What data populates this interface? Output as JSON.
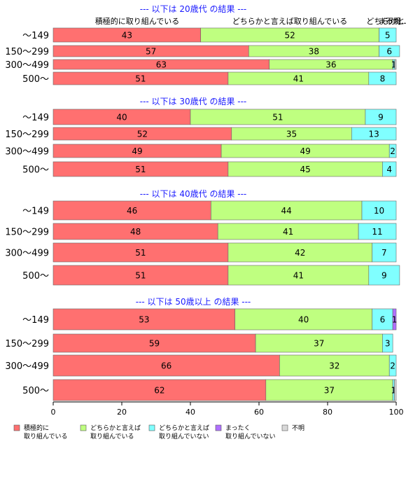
{
  "chart_data": {
    "type": "bar",
    "orientation": "horizontal",
    "stacked": true,
    "xlim": [
      0,
      100
    ],
    "x_ticks": [
      0,
      20,
      40,
      60,
      80,
      100
    ],
    "grid": false,
    "legend_position": "bottom",
    "top_labels": [
      "積極的に取り組んでいる",
      "どちらかと言えば取り組んでいる",
      "どちらかと...",
      "まった...",
      "不明..."
    ],
    "series": [
      {
        "name": "積極的に\n取り組んでいる",
        "color": "#FF7070"
      },
      {
        "name": "どちらかと言えば\n取り組んでいる",
        "color": "#BFFF80"
      },
      {
        "name": "どちらかと言えば\n取り組んでいない",
        "color": "#80FFFF"
      },
      {
        "name": "まったく\n取り組んでいない",
        "color": "#B070FF"
      },
      {
        "name": "不明",
        "color": "#D9D9D9"
      }
    ],
    "panels": [
      {
        "title": "--- 以下は 20歳代 の結果 ---",
        "rows": [
          {
            "category": "～149",
            "values": [
              43,
              52,
              5,
              0,
              0
            ],
            "labels": [
              "43",
              "52",
              "5",
              "",
              ""
            ]
          },
          {
            "category": "150～299",
            "values": [
              57,
              38,
              6,
              0,
              0
            ],
            "labels": [
              "57",
              "38",
              "6",
              "",
              ""
            ]
          },
          {
            "category": "300～499",
            "values": [
              63,
              36,
              0.6,
              0,
              0.4
            ],
            "labels": [
              "63",
              "36",
              "1",
              "",
              ""
            ]
          },
          {
            "category": "500～",
            "values": [
              51,
              41,
              8,
              0,
              0
            ],
            "labels": [
              "51",
              "41",
              "8",
              "",
              ""
            ]
          }
        ]
      },
      {
        "title": "--- 以下は 30歳代 の結果 ---",
        "rows": [
          {
            "category": "～149",
            "values": [
              40,
              51,
              9,
              0,
              0
            ],
            "labels": [
              "40",
              "51",
              "9",
              "",
              ""
            ]
          },
          {
            "category": "150～299",
            "values": [
              52,
              35,
              13,
              0,
              0
            ],
            "labels": [
              "52",
              "35",
              "13",
              "",
              ""
            ]
          },
          {
            "category": "300～499",
            "values": [
              49,
              49,
              2,
              0,
              0
            ],
            "labels": [
              "49",
              "49",
              "2",
              "",
              ""
            ]
          },
          {
            "category": "500～",
            "values": [
              51,
              45,
              4,
              0,
              0
            ],
            "labels": [
              "51",
              "45",
              "4",
              "",
              ""
            ]
          }
        ]
      },
      {
        "title": "--- 以下は 40歳代 の結果 ---",
        "rows": [
          {
            "category": "～149",
            "values": [
              46,
              44,
              10,
              0,
              0
            ],
            "labels": [
              "46",
              "44",
              "10",
              "",
              ""
            ]
          },
          {
            "category": "150～299",
            "values": [
              48,
              41,
              11,
              0,
              0
            ],
            "labels": [
              "48",
              "41",
              "11",
              "",
              ""
            ]
          },
          {
            "category": "300～499",
            "values": [
              51,
              42,
              7,
              0,
              0
            ],
            "labels": [
              "51",
              "42",
              "7",
              "",
              ""
            ]
          },
          {
            "category": "500～",
            "values": [
              51,
              41,
              9,
              0,
              0
            ],
            "labels": [
              "51",
              "41",
              "9",
              "",
              ""
            ]
          }
        ]
      },
      {
        "title": "--- 以下は 50歳以上 の結果 ---",
        "rows": [
          {
            "category": "～149",
            "values": [
              53,
              40,
              6,
              1,
              0
            ],
            "labels": [
              "53",
              "40",
              "6",
              "1",
              ""
            ]
          },
          {
            "category": "150～299",
            "values": [
              59,
              37,
              3,
              0,
              0
            ],
            "labels": [
              "59",
              "37",
              "3",
              "",
              ""
            ]
          },
          {
            "category": "300～499",
            "values": [
              66,
              32,
              2,
              0,
              0
            ],
            "labels": [
              "66",
              "32",
              "2",
              "",
              ""
            ]
          },
          {
            "category": "500～",
            "values": [
              62,
              37,
              0.5,
              0,
              0.5
            ],
            "labels": [
              "62",
              "37",
              "1",
              "",
              ""
            ]
          }
        ]
      }
    ]
  }
}
